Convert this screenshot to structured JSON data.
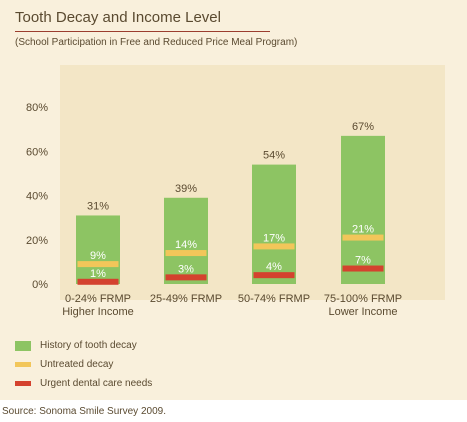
{
  "chart_data": {
    "type": "bar",
    "title": "Tooth Decay and Income Level",
    "subtitle": "(School Participation in Free and Reduced Price Meal Program)",
    "categories": [
      [
        "0-24% FRMP",
        "Higher Income"
      ],
      [
        "25-49% FRMP"
      ],
      [
        "50-74% FRMP"
      ],
      [
        "75-100% FRMP",
        "Lower Income"
      ]
    ],
    "ylim": [
      0,
      90
    ],
    "yticks": [
      0,
      20,
      40,
      60,
      80
    ],
    "ytick_labels": [
      "0%",
      "20%",
      "40%",
      "60%",
      "80%"
    ],
    "grid": false,
    "legend_position": "bottom-left",
    "series": [
      {
        "name": "History of tooth decay",
        "kind": "bar",
        "color": "#8dc463",
        "values": [
          31,
          39,
          54,
          67
        ],
        "labels": [
          "31%",
          "39%",
          "54%",
          "67%"
        ]
      },
      {
        "name": "Untreated decay",
        "kind": "marker",
        "color": "#f2c65a",
        "values": [
          9,
          14,
          17,
          21
        ],
        "labels": [
          "9%",
          "14%",
          "17%",
          "21%"
        ]
      },
      {
        "name": "Urgent dental care needs",
        "kind": "marker",
        "color": "#d4422e",
        "values": [
          1,
          3,
          4,
          7
        ],
        "labels": [
          "1%",
          "3%",
          "4%",
          "7%"
        ]
      }
    ]
  },
  "source": "Source: Sonoma Smile Survey 2009."
}
